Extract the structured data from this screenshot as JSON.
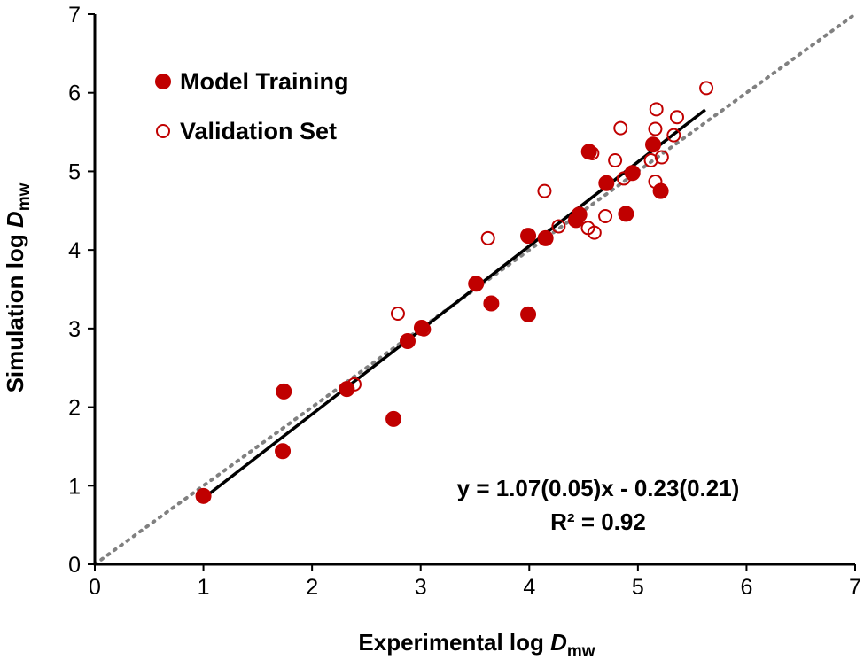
{
  "chart_data": {
    "type": "scatter",
    "xlabel": {
      "prefix": "Experimental log ",
      "italic": "D",
      "sub": "mw"
    },
    "ylabel": {
      "prefix": "Simulation log ",
      "italic": "D",
      "sub": "mw"
    },
    "xlim": [
      0,
      7
    ],
    "ylim": [
      0,
      7
    ],
    "xticks": [
      "0",
      "1",
      "2",
      "3",
      "4",
      "5",
      "6",
      "7"
    ],
    "yticks": [
      "0",
      "1",
      "2",
      "3",
      "4",
      "5",
      "6",
      "7"
    ],
    "grid": false,
    "legend_position": "top-left",
    "colors": {
      "series": "#c00000",
      "fit": "#000000",
      "identity": "#808080"
    },
    "series": [
      {
        "name": "Model Training",
        "marker": "filled-circle",
        "points": [
          [
            1.0,
            0.87
          ],
          [
            1.73,
            1.44
          ],
          [
            1.74,
            2.2
          ],
          [
            2.32,
            2.23
          ],
          [
            2.75,
            1.85
          ],
          [
            2.88,
            2.84
          ],
          [
            3.01,
            3.01
          ],
          [
            3.51,
            3.57
          ],
          [
            3.65,
            3.32
          ],
          [
            3.99,
            3.18
          ],
          [
            3.99,
            4.18
          ],
          [
            4.15,
            4.15
          ],
          [
            4.43,
            4.38
          ],
          [
            4.46,
            4.45
          ],
          [
            4.55,
            5.25
          ],
          [
            4.71,
            4.85
          ],
          [
            4.89,
            4.46
          ],
          [
            4.95,
            4.98
          ],
          [
            5.14,
            5.34
          ],
          [
            5.21,
            4.75
          ]
        ]
      },
      {
        "name": "Validation Set",
        "marker": "open-circle",
        "points": [
          [
            2.39,
            2.29
          ],
          [
            2.79,
            3.19
          ],
          [
            3.03,
            2.99
          ],
          [
            3.62,
            4.15
          ],
          [
            4.14,
            4.75
          ],
          [
            4.27,
            4.3
          ],
          [
            4.54,
            4.28
          ],
          [
            4.58,
            5.23
          ],
          [
            4.6,
            4.22
          ],
          [
            4.7,
            4.43
          ],
          [
            4.79,
            5.14
          ],
          [
            4.84,
            5.55
          ],
          [
            4.87,
            4.91
          ],
          [
            5.12,
            5.14
          ],
          [
            5.16,
            4.87
          ],
          [
            5.16,
            5.54
          ],
          [
            5.17,
            5.79
          ],
          [
            5.22,
            5.18
          ],
          [
            5.33,
            5.46
          ],
          [
            5.36,
            5.69
          ],
          [
            5.63,
            6.06
          ]
        ]
      }
    ],
    "fit_line": {
      "slope": 1.07,
      "intercept": -0.23,
      "x_range": [
        1.0,
        5.62
      ]
    },
    "identity_line": {
      "x_range": [
        0,
        7
      ]
    },
    "annotations": [
      "y = 1.07(0.05)x - 0.23(0.21)",
      "R² = 0.92"
    ]
  }
}
